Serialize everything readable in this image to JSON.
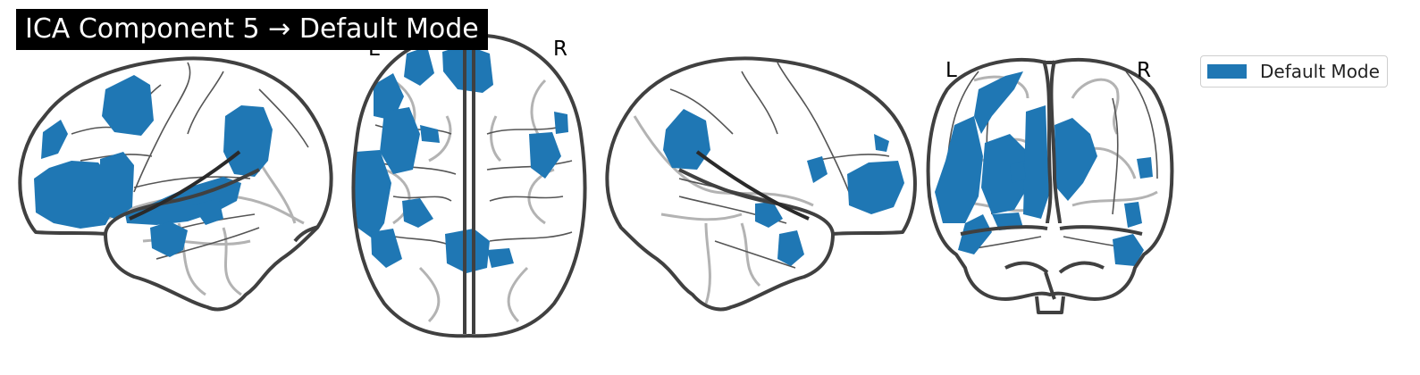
{
  "title": "ICA Component 5 → Default Mode",
  "legend": {
    "label": "Default Mode",
    "color": "#1f77b4"
  },
  "views": {
    "axial": {
      "left_label": "L",
      "right_label": "R"
    },
    "coronal": {
      "left_label": "L",
      "right_label": "R"
    }
  },
  "colors": {
    "blob": "#1f77b4",
    "outline": "#404040",
    "sulci": "#b3b3b3",
    "title_bg": "#000000"
  }
}
